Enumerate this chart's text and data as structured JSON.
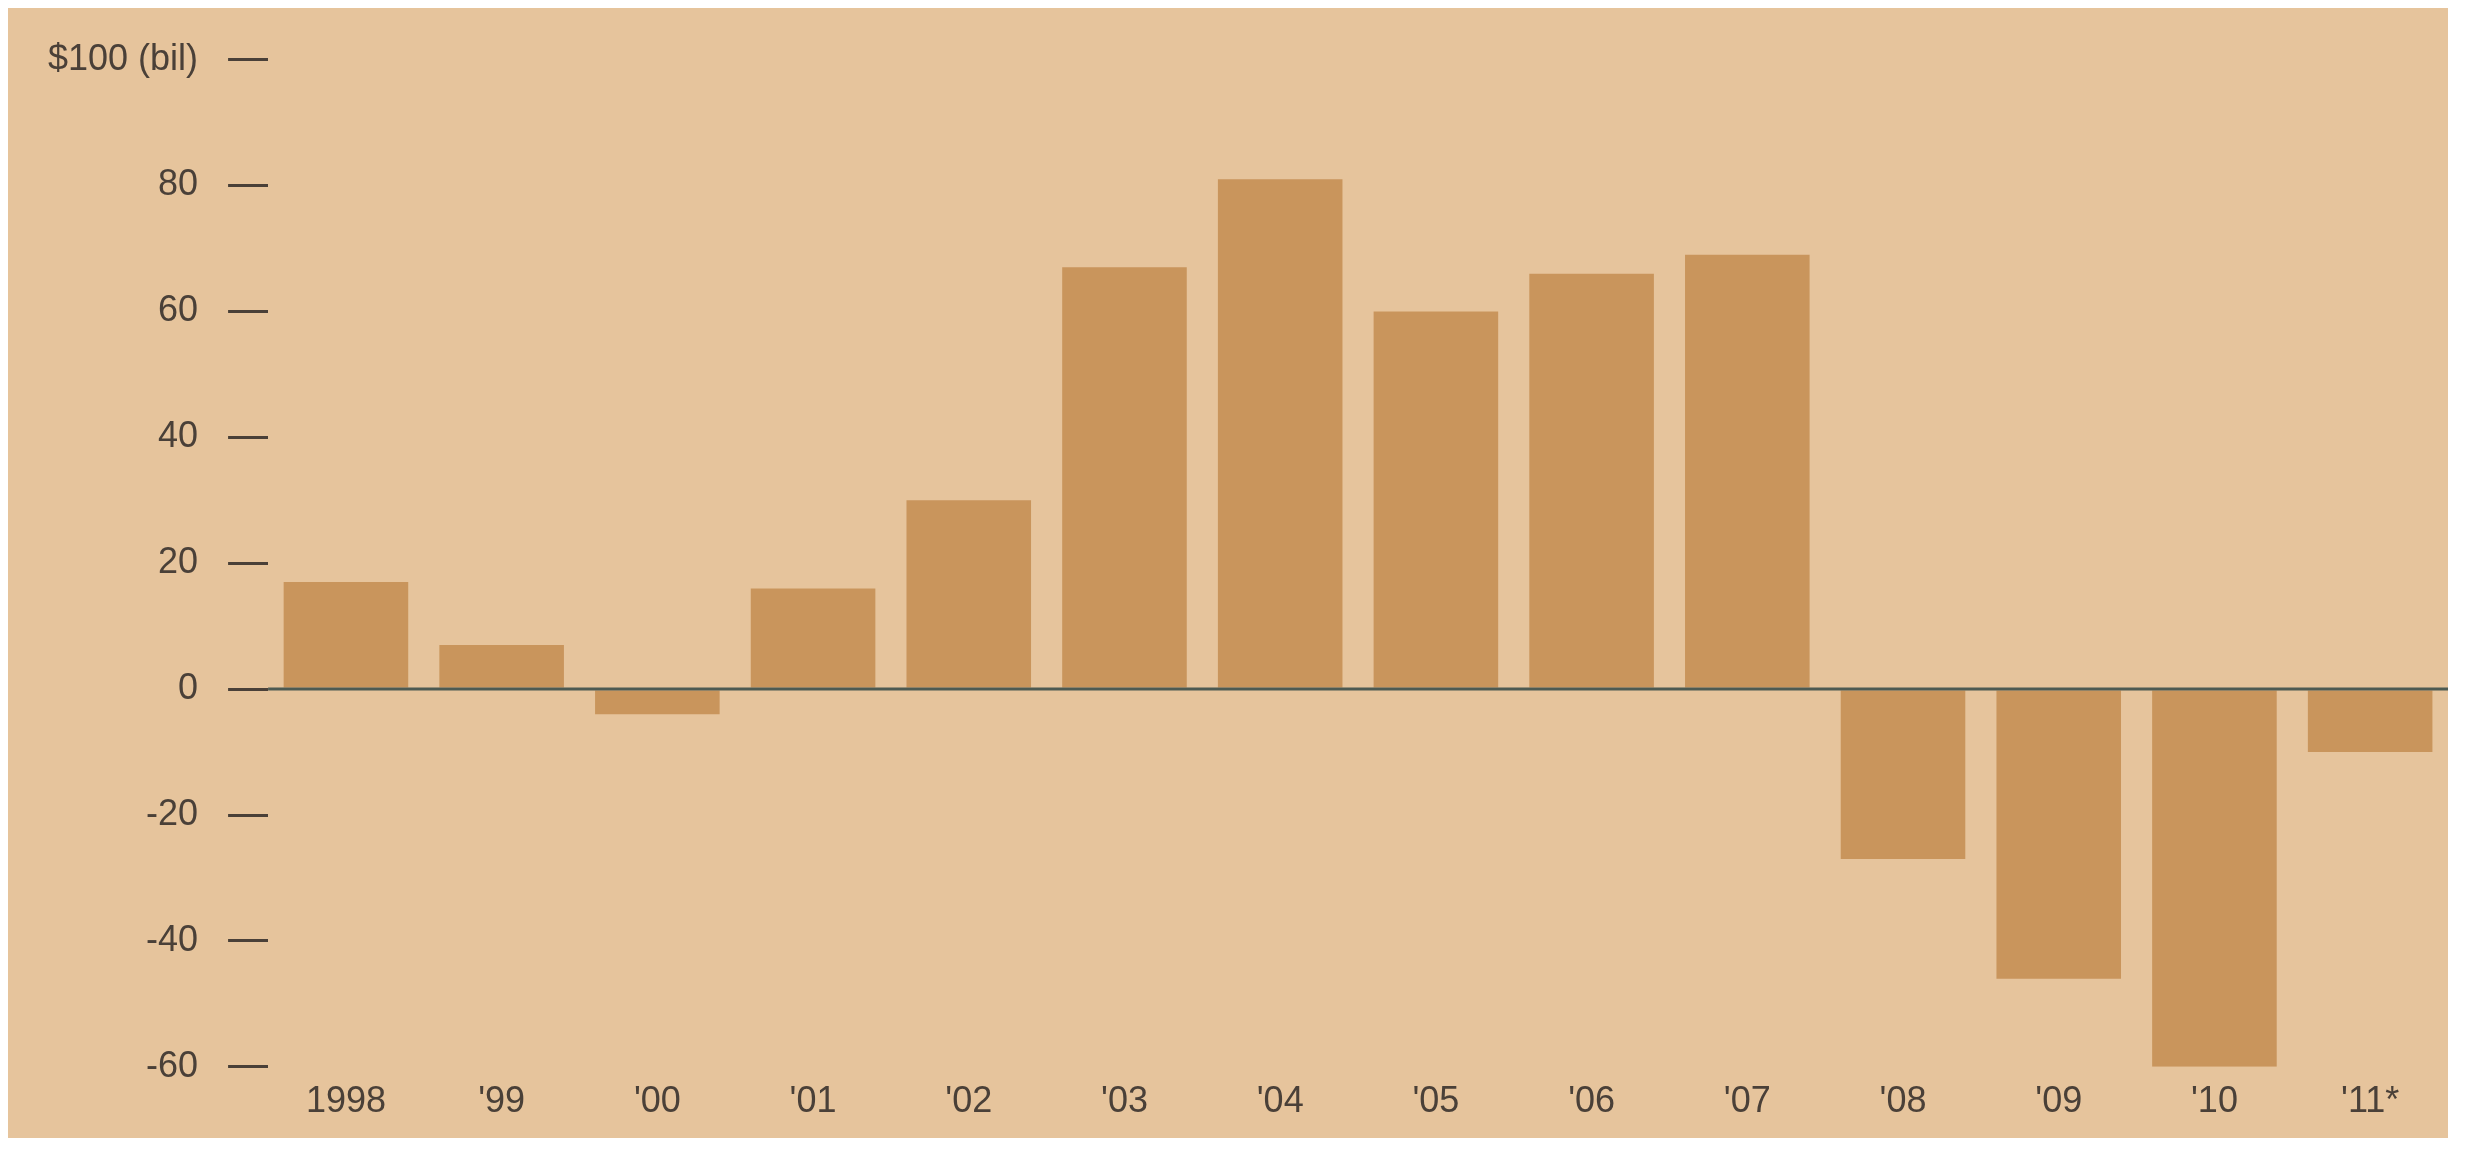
{
  "chart_data": {
    "type": "bar",
    "categories": [
      "1998",
      "'99",
      "'00",
      "'01",
      "'02",
      "'03",
      "'04",
      "'05",
      "'06",
      "'07",
      "'08",
      "'09",
      "'10",
      "'11*"
    ],
    "values": [
      17,
      7,
      -4,
      16,
      30,
      67,
      81,
      60,
      66,
      69,
      -27,
      -46,
      -60,
      -10
    ],
    "color": "#c9955c",
    "ylim": [
      -60,
      100
    ],
    "yticks": [
      {
        "value": 100,
        "label": "$100 (bil)"
      },
      80,
      60,
      40,
      20,
      0,
      -20,
      -40,
      -60
    ],
    "ref_lines": [
      {
        "axis": "y",
        "value": 0,
        "color": "#4d5a52"
      }
    ],
    "grid": false,
    "legend": false
  }
}
